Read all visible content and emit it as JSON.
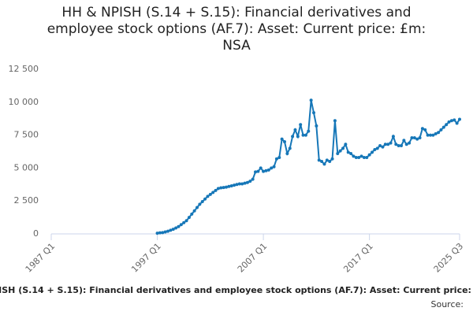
{
  "chart_data": {
    "type": "line",
    "title": "HH & NPISH (S.14 + S.15): Financial derivatives and employee stock options (AF.7): Asset: Current price: £m: NSA",
    "source": "Source:",
    "color": "#1677b8",
    "grid": false,
    "ylim": [
      0,
      12500
    ],
    "yticks": [
      0,
      {
        "value": 2500,
        "label": "2 500"
      },
      {
        "value": 5000,
        "label": "5 000"
      },
      {
        "value": 7500,
        "label": "7 500"
      },
      {
        "value": 10000,
        "label": "10 000"
      },
      {
        "value": 12500,
        "label": "12 500"
      }
    ],
    "categories": [
      "1987 Q1",
      null,
      null,
      null,
      null,
      null,
      null,
      null,
      null,
      null,
      null,
      null,
      null,
      null,
      null,
      null,
      null,
      null,
      null,
      null,
      null,
      null,
      null,
      null,
      null,
      null,
      null,
      null,
      null,
      null,
      null,
      null,
      null,
      null,
      null,
      null,
      null,
      null,
      null,
      null,
      "1997 Q1",
      null,
      null,
      null,
      null,
      null,
      null,
      null,
      null,
      null,
      null,
      null,
      null,
      null,
      null,
      null,
      null,
      null,
      null,
      null,
      null,
      null,
      null,
      null,
      null,
      null,
      null,
      null,
      null,
      null,
      null,
      null,
      null,
      null,
      null,
      null,
      null,
      null,
      null,
      null,
      "2007 Q1",
      null,
      null,
      null,
      null,
      null,
      null,
      null,
      null,
      null,
      null,
      null,
      null,
      null,
      null,
      null,
      null,
      null,
      null,
      null,
      null,
      null,
      null,
      null,
      null,
      null,
      null,
      null,
      null,
      null,
      null,
      null,
      null,
      null,
      null,
      null,
      null,
      null,
      null,
      null,
      "2017 Q1",
      null,
      null,
      null,
      null,
      null,
      null,
      null,
      null,
      null,
      null,
      null,
      null,
      null,
      null,
      null,
      null,
      null,
      null,
      null,
      null,
      null,
      null,
      null,
      null,
      null,
      null,
      null,
      null,
      null,
      null,
      null,
      null,
      null,
      "2025 Q3"
    ],
    "values": [
      null,
      null,
      null,
      null,
      null,
      null,
      null,
      null,
      null,
      null,
      null,
      null,
      null,
      null,
      null,
      null,
      null,
      null,
      null,
      null,
      null,
      null,
      null,
      null,
      null,
      null,
      null,
      null,
      null,
      null,
      null,
      null,
      null,
      null,
      null,
      null,
      null,
      null,
      null,
      null,
      50,
      80,
      100,
      150,
      200,
      280,
      350,
      450,
      550,
      700,
      850,
      1000,
      1250,
      1500,
      1750,
      2000,
      2250,
      2450,
      2650,
      2850,
      3000,
      3150,
      3300,
      3450,
      3500,
      3520,
      3550,
      3600,
      3650,
      3700,
      3750,
      3800,
      3800,
      3850,
      3900,
      4000,
      4150,
      4700,
      4750,
      5000,
      4750,
      4800,
      4850,
      5000,
      5100,
      5700,
      5800,
      7200,
      7000,
      6100,
      6500,
      7400,
      7900,
      7400,
      8300,
      7500,
      7500,
      7800,
      10150,
      9200,
      8200,
      5600,
      5500,
      5300,
      5600,
      5500,
      5700,
      8600,
      6100,
      6300,
      6500,
      6800,
      6200,
      6100,
      5900,
      5800,
      5800,
      5900,
      5800,
      5800,
      6000,
      6200,
      6400,
      6500,
      6700,
      6600,
      6800,
      6800,
      6900,
      7400,
      6800,
      6700,
      6700,
      7100,
      6800,
      6900,
      7300,
      7300,
      7200,
      7300,
      8000,
      7900,
      7500,
      7500,
      7500,
      7600,
      7700,
      7900,
      8100,
      8300,
      8500,
      8600,
      8650,
      8400,
      8700
    ]
  }
}
